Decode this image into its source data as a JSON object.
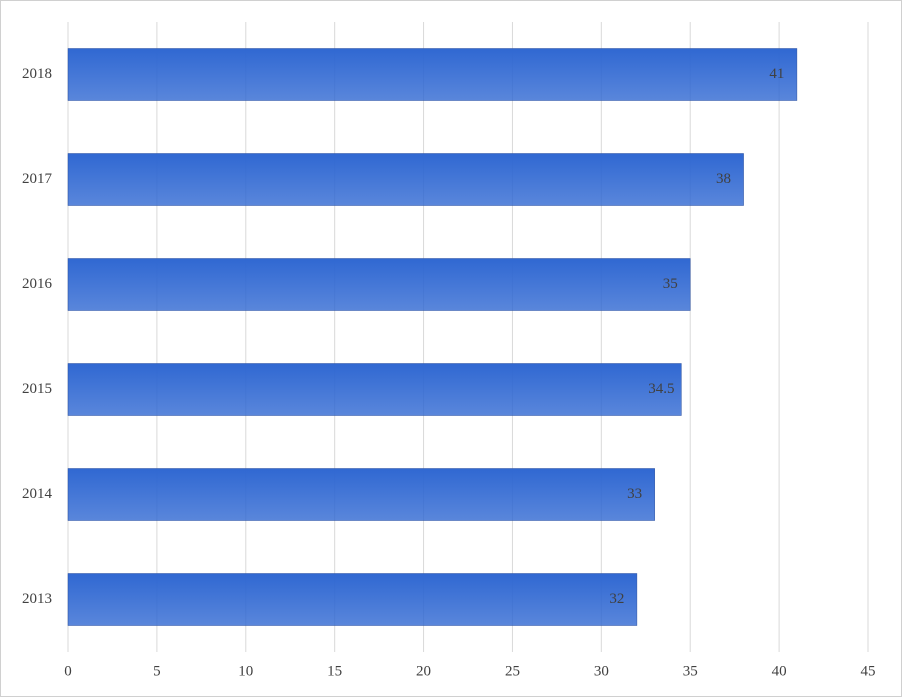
{
  "chart_data": {
    "type": "bar",
    "orientation": "horizontal",
    "categories": [
      "2013",
      "2014",
      "2015",
      "2016",
      "2017",
      "2018"
    ],
    "values": [
      32,
      33,
      34.5,
      35,
      38,
      41
    ],
    "color": "#3068d2",
    "xlim": [
      0,
      45
    ],
    "xticks": [
      0,
      5,
      10,
      15,
      20,
      25,
      30,
      35,
      40,
      45
    ],
    "grid": true
  }
}
